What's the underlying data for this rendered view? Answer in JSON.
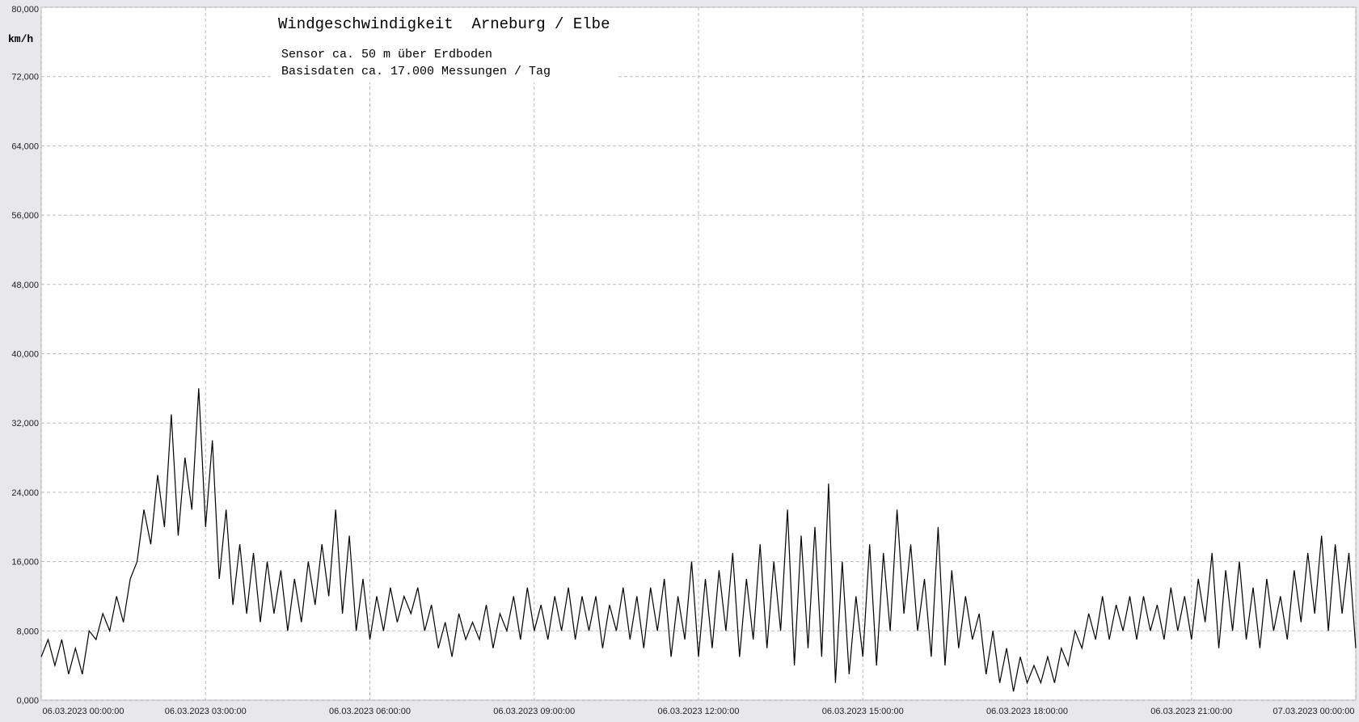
{
  "chart_data": {
    "type": "line",
    "title": "Windgeschwindigkeit  Arneburg / Elbe",
    "subtitle": [
      "Sensor ca. 50 m über Erdboden",
      "Basisdaten ca. 17.000 Messungen / Tag"
    ],
    "y_label": "km/h",
    "xlim": [
      0,
      24
    ],
    "ylim": [
      0,
      80
    ],
    "xticks": [
      {
        "value": 0,
        "label": "06.03.2023  00:00:00"
      },
      {
        "value": 3,
        "label": "06.03.2023  03:00:00"
      },
      {
        "value": 6,
        "label": "06.03.2023  06:00:00"
      },
      {
        "value": 9,
        "label": "06.03.2023  09:00:00"
      },
      {
        "value": 12,
        "label": "06.03.2023  12:00:00"
      },
      {
        "value": 15,
        "label": "06.03.2023  15:00:00"
      },
      {
        "value": 18,
        "label": "06.03.2023  18:00:00"
      },
      {
        "value": 21,
        "label": "06.03.2023  21:00:00"
      },
      {
        "value": 24,
        "label": "07.03.2023  00:00:00"
      }
    ],
    "yticks": [
      {
        "value": 0,
        "label": "0,000"
      },
      {
        "value": 8,
        "label": "8,000"
      },
      {
        "value": 16,
        "label": "16,000"
      },
      {
        "value": 24,
        "label": "24,000"
      },
      {
        "value": 32,
        "label": "32,000"
      },
      {
        "value": 40,
        "label": "40,000"
      },
      {
        "value": 48,
        "label": "48,000"
      },
      {
        "value": 56,
        "label": "56,000"
      },
      {
        "value": 64,
        "label": "64,000"
      },
      {
        "value": 72,
        "label": "72,000"
      },
      {
        "value": 80,
        "label": "80,000"
      }
    ],
    "grid": true,
    "series": [
      {
        "color": "#000000",
        "x": [
          0,
          0.125,
          0.25,
          0.375,
          0.5,
          0.625,
          0.75,
          0.875,
          1,
          1.125,
          1.25,
          1.375,
          1.5,
          1.625,
          1.75,
          1.875,
          2,
          2.125,
          2.25,
          2.375,
          2.5,
          2.625,
          2.75,
          2.875,
          3,
          3.125,
          3.25,
          3.375,
          3.5,
          3.625,
          3.75,
          3.875,
          4,
          4.125,
          4.25,
          4.375,
          4.5,
          4.625,
          4.75,
          4.875,
          5,
          5.125,
          5.25,
          5.375,
          5.5,
          5.625,
          5.75,
          5.875,
          6,
          6.125,
          6.25,
          6.375,
          6.5,
          6.625,
          6.75,
          6.875,
          7,
          7.125,
          7.25,
          7.375,
          7.5,
          7.625,
          7.75,
          7.875,
          8,
          8.125,
          8.25,
          8.375,
          8.5,
          8.625,
          8.75,
          8.875,
          9,
          9.125,
          9.25,
          9.375,
          9.5,
          9.625,
          9.75,
          9.875,
          10,
          10.125,
          10.25,
          10.375,
          10.5,
          10.625,
          10.75,
          10.875,
          11,
          11.125,
          11.25,
          11.375,
          11.5,
          11.625,
          11.75,
          11.875,
          12,
          12.125,
          12.25,
          12.375,
          12.5,
          12.625,
          12.75,
          12.875,
          13,
          13.125,
          13.25,
          13.375,
          13.5,
          13.625,
          13.75,
          13.875,
          14,
          14.125,
          14.25,
          14.375,
          14.5,
          14.625,
          14.75,
          14.875,
          15,
          15.125,
          15.25,
          15.375,
          15.5,
          15.625,
          15.75,
          15.875,
          16,
          16.125,
          16.25,
          16.375,
          16.5,
          16.625,
          16.75,
          16.875,
          17,
          17.125,
          17.25,
          17.375,
          17.5,
          17.625,
          17.75,
          17.875,
          18,
          18.125,
          18.25,
          18.375,
          18.5,
          18.625,
          18.75,
          18.875,
          19,
          19.125,
          19.25,
          19.375,
          19.5,
          19.625,
          19.75,
          19.875,
          20,
          20.125,
          20.25,
          20.375,
          20.5,
          20.625,
          20.75,
          20.875,
          21,
          21.125,
          21.25,
          21.375,
          21.5,
          21.625,
          21.75,
          21.875,
          22,
          22.125,
          22.25,
          22.375,
          22.5,
          22.625,
          22.75,
          22.875,
          23,
          23.125,
          23.25,
          23.375,
          23.5,
          23.625,
          23.75,
          23.875,
          24
        ],
        "values": [
          5,
          7,
          4,
          7,
          3,
          6,
          3,
          8,
          7,
          10,
          8,
          12,
          9,
          14,
          16,
          22,
          18,
          26,
          20,
          33,
          19,
          28,
          22,
          36,
          20,
          30,
          14,
          22,
          11,
          18,
          10,
          17,
          9,
          16,
          10,
          15,
          8,
          14,
          9,
          16,
          11,
          18,
          12,
          22,
          10,
          19,
          8,
          14,
          7,
          12,
          8,
          13,
          9,
          12,
          10,
          13,
          8,
          11,
          6,
          9,
          5,
          10,
          7,
          9,
          7,
          11,
          6,
          10,
          8,
          12,
          7,
          13,
          8,
          11,
          7,
          12,
          8,
          13,
          7,
          12,
          8,
          12,
          6,
          11,
          8,
          13,
          7,
          12,
          6,
          13,
          8,
          14,
          5,
          12,
          7,
          16,
          5,
          14,
          6,
          15,
          8,
          17,
          5,
          14,
          7,
          18,
          6,
          16,
          8,
          22,
          4,
          19,
          6,
          20,
          5,
          25,
          2,
          16,
          3,
          12,
          5,
          18,
          4,
          17,
          8,
          22,
          10,
          18,
          8,
          14,
          5,
          20,
          4,
          15,
          6,
          12,
          7,
          10,
          3,
          8,
          2,
          6,
          1,
          5,
          2,
          4,
          2,
          5,
          2,
          6,
          4,
          8,
          6,
          10,
          7,
          12,
          7,
          11,
          8,
          12,
          7,
          12,
          8,
          11,
          7,
          13,
          8,
          12,
          7,
          14,
          9,
          17,
          6,
          15,
          8,
          16,
          7,
          13,
          6,
          14,
          8,
          12,
          7,
          15,
          9,
          17,
          10,
          19,
          8,
          18,
          10,
          17,
          6
        ]
      }
    ]
  }
}
